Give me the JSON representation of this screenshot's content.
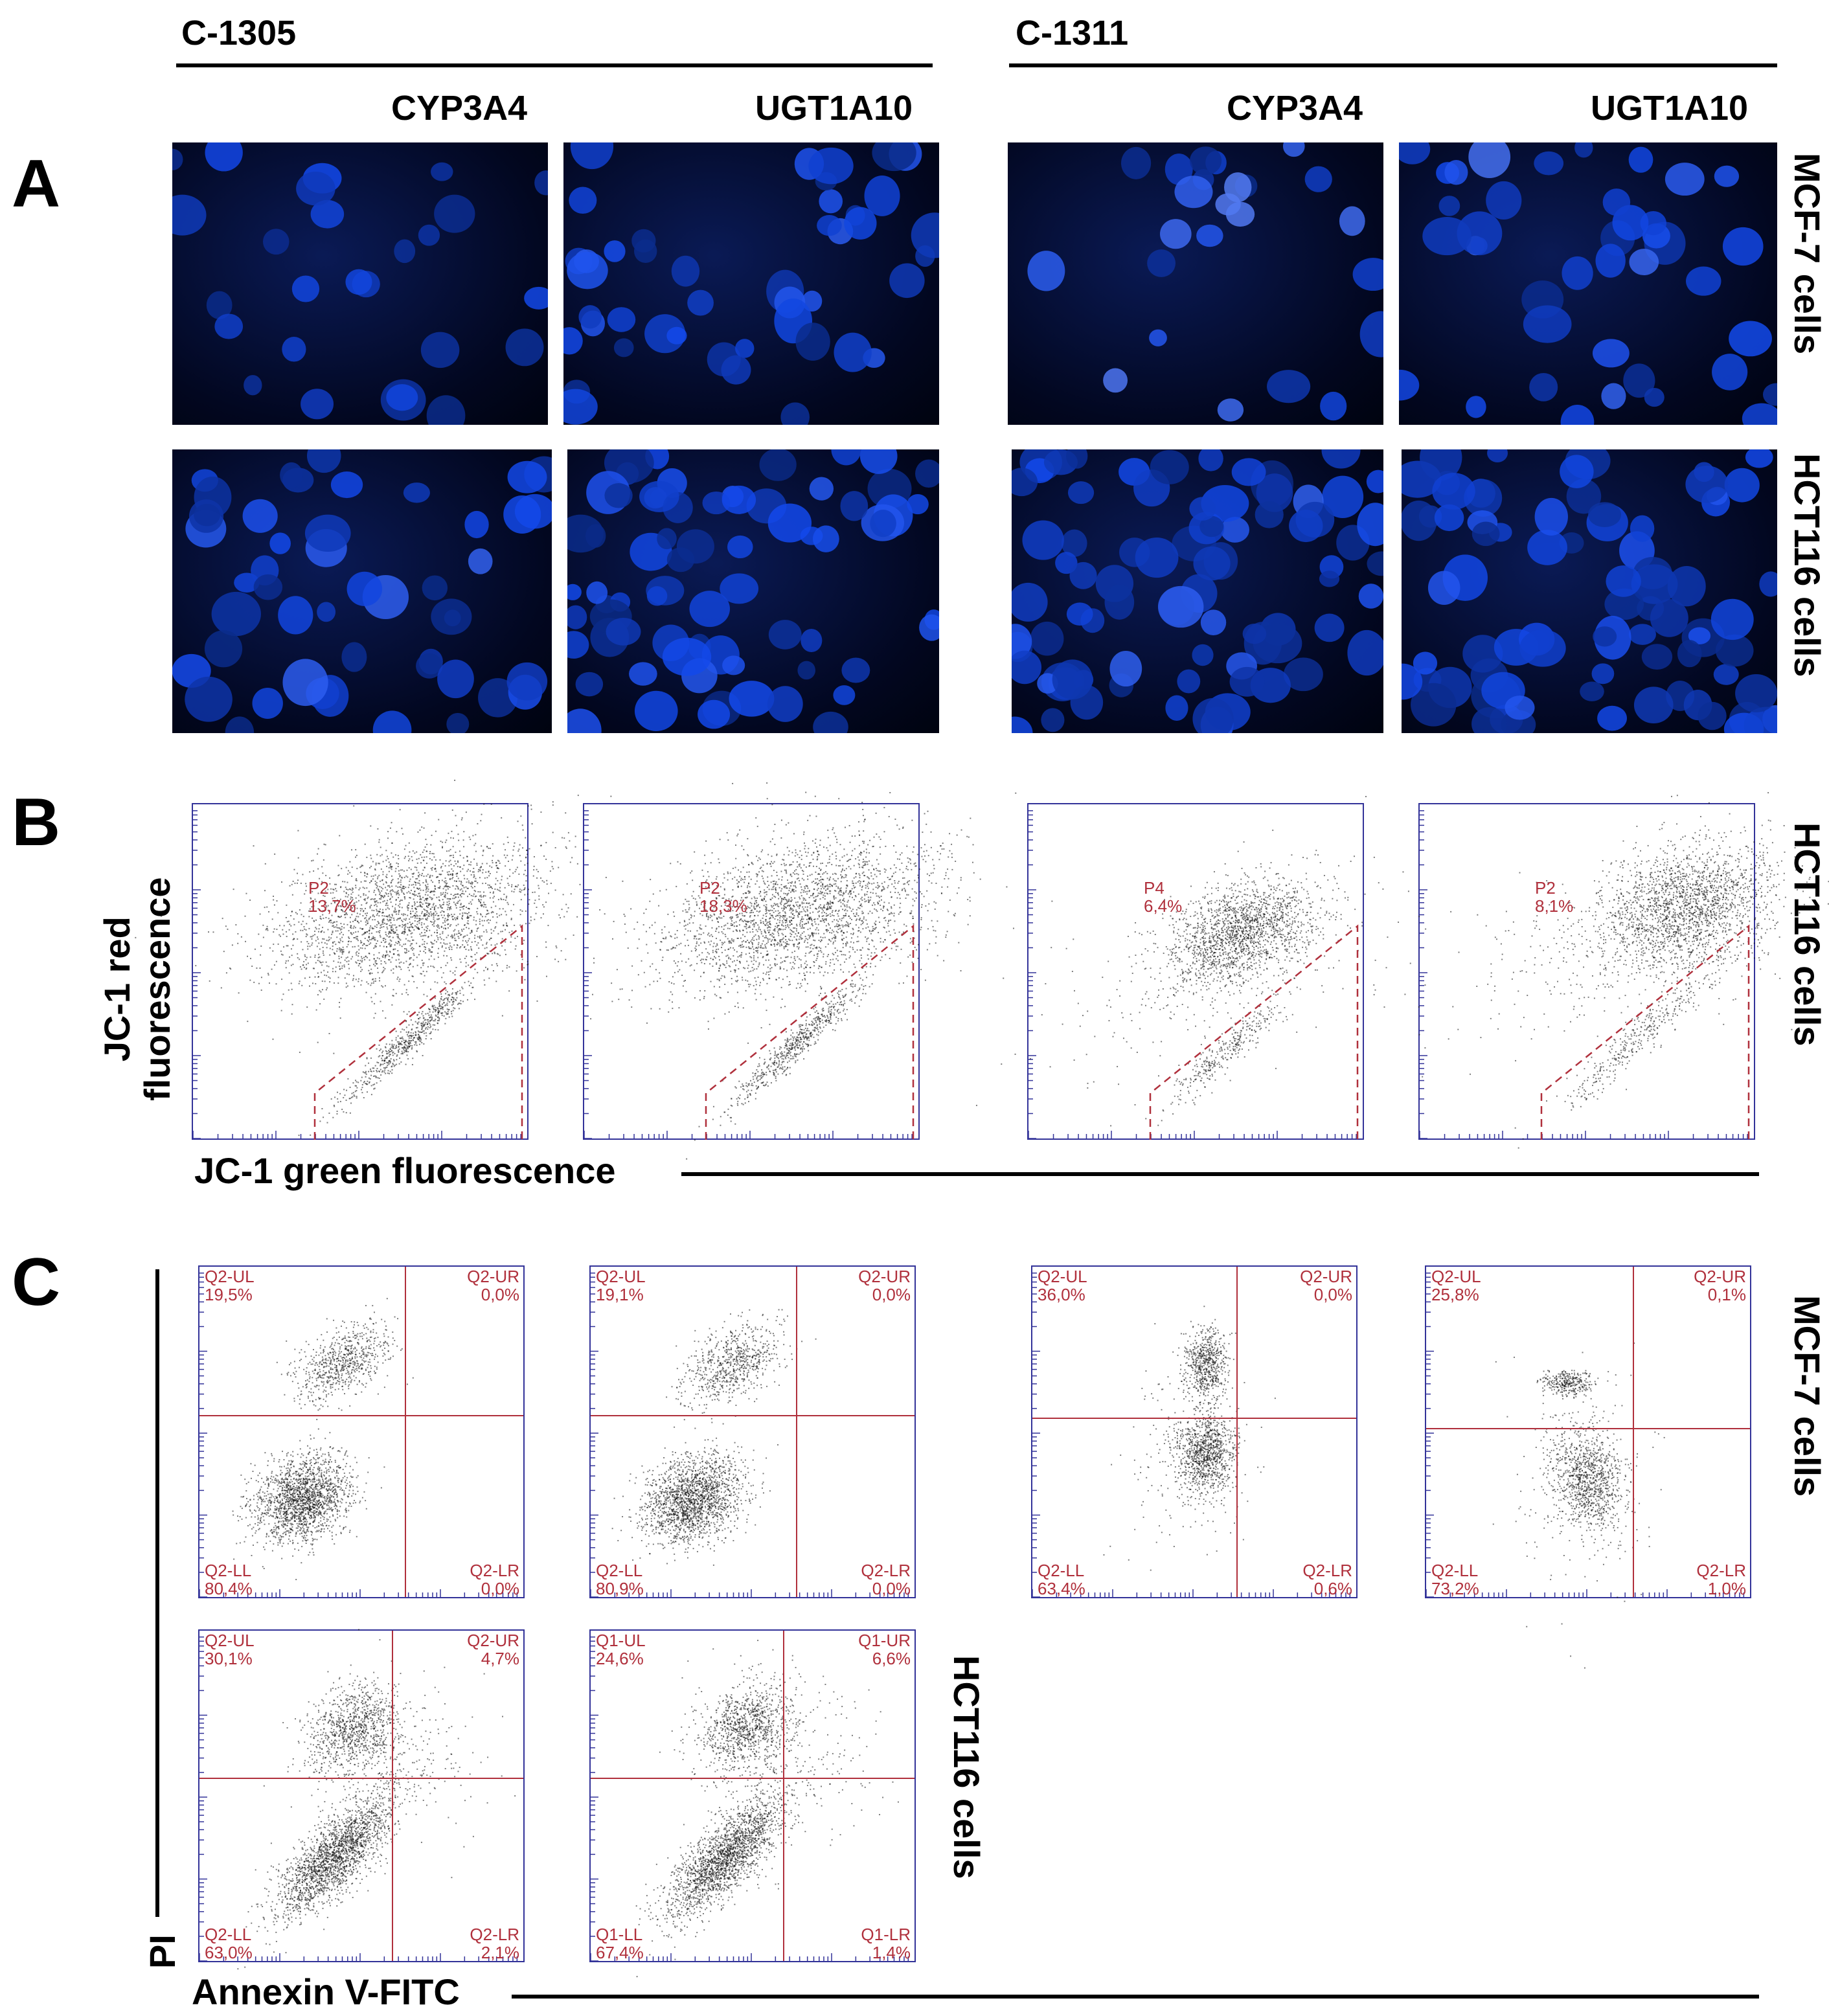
{
  "figure": {
    "compounds": [
      "C-1305",
      "C-1311"
    ],
    "enzymes": [
      "CYP3A4",
      "UGT1A10",
      "CYP3A4",
      "UGT1A10"
    ],
    "panels": {
      "a": "A",
      "b": "B",
      "c": "C"
    },
    "cell_lines": {
      "mcf7": "MCF-7 cells",
      "hct116": "HCT116 cells"
    },
    "panel_b": {
      "ylabel_line1": "JC-1 red",
      "ylabel_line2": "fluorescence",
      "xlabel": "JC-1 green fluorescence",
      "row_label": "HCT116 cells"
    },
    "panel_c": {
      "ylabel": "PI",
      "xlabel": "Annexin V-FITC",
      "row_label_top": "MCF-7 cells",
      "row_label_bottom": "HCT116 cells"
    },
    "colors": {
      "gate": "#b0303c",
      "axis": "#333399",
      "dots": "#111111",
      "nuclei": "#1f4fe0",
      "micro_bg": "#020720"
    }
  },
  "chart_data": [
    {
      "type": "scatter",
      "panel": "B",
      "cell_line": "HCT116 cells",
      "compound": "C-1305",
      "enzyme": "CYP3A4",
      "gate_label": "P2",
      "gate_value": "13,7%"
    },
    {
      "type": "scatter",
      "panel": "B",
      "cell_line": "HCT116 cells",
      "compound": "C-1305",
      "enzyme": "UGT1A10",
      "gate_label": "P2",
      "gate_value": "18,3%"
    },
    {
      "type": "scatter",
      "panel": "B",
      "cell_line": "HCT116 cells",
      "compound": "C-1311",
      "enzyme": "CYP3A4",
      "gate_label": "P4",
      "gate_value": "6,4%"
    },
    {
      "type": "scatter",
      "panel": "B",
      "cell_line": "HCT116 cells",
      "compound": "C-1311",
      "enzyme": "UGT1A10",
      "gate_label": "P2",
      "gate_value": "8,1%"
    },
    {
      "type": "scatter",
      "panel": "C",
      "cell_line": "MCF-7 cells",
      "compound": "C-1305",
      "enzyme": "CYP3A4",
      "quadrants": {
        "UL": {
          "label": "Q2-UL",
          "value": "19,5%"
        },
        "UR": {
          "label": "Q2-UR",
          "value": "0,0%"
        },
        "LL": {
          "label": "Q2-LL",
          "value": "80,4%"
        },
        "LR": {
          "label": "Q2-LR",
          "value": "0,0%"
        }
      }
    },
    {
      "type": "scatter",
      "panel": "C",
      "cell_line": "MCF-7 cells",
      "compound": "C-1305",
      "enzyme": "UGT1A10",
      "quadrants": {
        "UL": {
          "label": "Q2-UL",
          "value": "19,1%"
        },
        "UR": {
          "label": "Q2-UR",
          "value": "0,0%"
        },
        "LL": {
          "label": "Q2-LL",
          "value": "80,9%"
        },
        "LR": {
          "label": "Q2-LR",
          "value": "0,0%"
        }
      }
    },
    {
      "type": "scatter",
      "panel": "C",
      "cell_line": "MCF-7 cells",
      "compound": "C-1311",
      "enzyme": "CYP3A4",
      "quadrants": {
        "UL": {
          "label": "Q2-UL",
          "value": "36,0%"
        },
        "UR": {
          "label": "Q2-UR",
          "value": "0,0%"
        },
        "LL": {
          "label": "Q2-LL",
          "value": "63,4%"
        },
        "LR": {
          "label": "Q2-LR",
          "value": "0,6%"
        }
      }
    },
    {
      "type": "scatter",
      "panel": "C",
      "cell_line": "MCF-7 cells",
      "compound": "C-1311",
      "enzyme": "UGT1A10",
      "quadrants": {
        "UL": {
          "label": "Q2-UL",
          "value": "25,8%"
        },
        "UR": {
          "label": "Q2-UR",
          "value": "0,1%"
        },
        "LL": {
          "label": "Q2-LL",
          "value": "73,2%"
        },
        "LR": {
          "label": "Q2-LR",
          "value": "1,0%"
        }
      }
    },
    {
      "type": "scatter",
      "panel": "C",
      "cell_line": "HCT116 cells",
      "compound": "C-1305",
      "enzyme": "CYP3A4",
      "quadrants": {
        "UL": {
          "label": "Q2-UL",
          "value": "30,1%"
        },
        "UR": {
          "label": "Q2-UR",
          "value": "4,7%"
        },
        "LL": {
          "label": "Q2-LL",
          "value": "63,0%"
        },
        "LR": {
          "label": "Q2-LR",
          "value": "2,1%"
        }
      }
    },
    {
      "type": "scatter",
      "panel": "C",
      "cell_line": "HCT116 cells",
      "compound": "C-1305",
      "enzyme": "UGT1A10",
      "quadrants": {
        "UL": {
          "label": "Q1-UL",
          "value": "24,6%"
        },
        "UR": {
          "label": "Q1-UR",
          "value": "6,6%"
        },
        "LL": {
          "label": "Q1-LL",
          "value": "67,4%"
        },
        "LR": {
          "label": "Q1-LR",
          "value": "1,4%"
        }
      }
    }
  ]
}
